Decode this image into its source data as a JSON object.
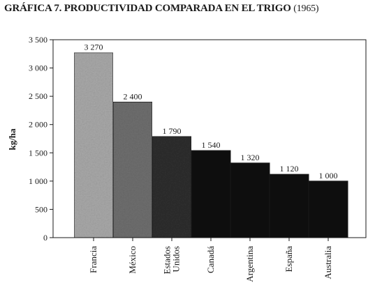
{
  "chart_data": {
    "type": "bar",
    "title": "GRÁFICA 7. PRODUCTIVIDAD COMPARADA EN EL TRIGO",
    "title_year": "(1965)",
    "xlabel": "",
    "ylabel": "kg/ha",
    "ylim": [
      0,
      3500
    ],
    "yticks": [
      0,
      500,
      1000,
      1500,
      2000,
      2500,
      3000,
      3500
    ],
    "ytick_labels": [
      "0",
      "500",
      "1 000",
      "1 500",
      "2 000",
      "2 500",
      "3 000",
      "3 500"
    ],
    "categories": [
      "Francia",
      "México",
      "Estados Unidos",
      "Canadá",
      "Argentina",
      "España",
      "Australia"
    ],
    "category_lines": [
      [
        "Francia"
      ],
      [
        "México"
      ],
      [
        "Estados",
        "Unidos"
      ],
      [
        "Canadá"
      ],
      [
        "Argentina"
      ],
      [
        "España"
      ],
      [
        "Australia"
      ]
    ],
    "values": [
      3270,
      2400,
      1790,
      1540,
      1320,
      1120,
      1000
    ],
    "value_labels": [
      "3 270",
      "2 400",
      "1 790",
      "1 540",
      "1 320",
      "1 120",
      "1 000"
    ],
    "bar_colors": [
      "#a8a8a8",
      "#6e6e6e",
      "#2e2e2e",
      "#0e0e0e",
      "#0e0e0e",
      "#0e0e0e",
      "#0e0e0e"
    ],
    "grid": false,
    "legend": "none"
  }
}
